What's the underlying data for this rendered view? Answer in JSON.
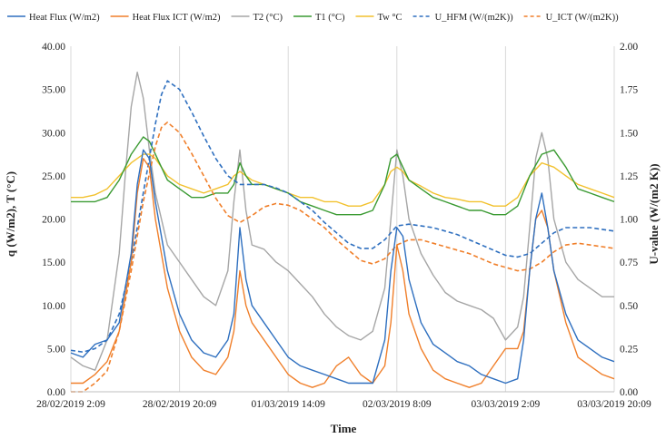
{
  "chart_data": {
    "type": "line",
    "title": "",
    "xlabel": "Time",
    "ylabel": "q (W/m2), T (°C)",
    "y2label": "U-value (W/(m2 K))",
    "xlim": [
      0,
      90
    ],
    "x_tick_values": [
      0,
      18,
      36,
      54,
      72,
      90
    ],
    "x_tick_labels": [
      "28/02/2019 2:09",
      "28/02/2019 20:09",
      "01/03/2019 14:09",
      "02/03/2019 8:09",
      "03/03/2019 2:09",
      "03/03/2019 20:09"
    ],
    "ylim": [
      0,
      40
    ],
    "y_ticks": [
      "0.00",
      "5.00",
      "10.00",
      "15.00",
      "20.00",
      "25.00",
      "30.00",
      "35.00",
      "40.00"
    ],
    "y2lim": [
      0,
      2
    ],
    "y2_ticks": [
      "0.00",
      "0.25",
      "0.50",
      "0.75",
      "1.00",
      "1.25",
      "1.50",
      "1.75",
      "2.00"
    ],
    "grid": "vertical",
    "legend_position": "top",
    "series": [
      {
        "name": "Heat Flux (W/m2)",
        "color": "#2e6fbf",
        "dash": "solid",
        "axis": "left",
        "x": [
          0,
          2,
          4,
          6,
          8,
          10,
          11,
          12,
          13,
          14,
          16,
          18,
          20,
          22,
          24,
          26,
          27,
          28,
          29,
          30,
          32,
          34,
          36,
          38,
          40,
          42,
          44,
          46,
          48,
          50,
          52,
          53,
          54,
          55,
          56,
          58,
          60,
          62,
          64,
          66,
          68,
          70,
          72,
          74,
          75,
          76,
          77,
          78,
          79,
          80,
          82,
          84,
          86,
          88,
          90
        ],
        "y": [
          4.5,
          4.0,
          5.5,
          6.0,
          8.0,
          16.0,
          24.0,
          28.0,
          27.0,
          22.0,
          14.0,
          9.0,
          6.0,
          4.5,
          4.0,
          6.0,
          9.0,
          19.0,
          13.0,
          10.0,
          8.0,
          6.0,
          4.0,
          3.0,
          2.5,
          2.0,
          1.5,
          1.0,
          1.0,
          1.0,
          6.0,
          14.0,
          19.0,
          18.0,
          13.0,
          8.0,
          5.5,
          4.5,
          3.5,
          3.0,
          2.0,
          1.5,
          1.0,
          1.5,
          6.0,
          14.0,
          20.0,
          23.0,
          19.0,
          14.0,
          9.0,
          6.0,
          5.0,
          4.0,
          3.5
        ]
      },
      {
        "name": "Heat Flux ICT (W/m2)",
        "color": "#f07f2a",
        "dash": "solid",
        "axis": "left",
        "x": [
          0,
          2,
          4,
          6,
          8,
          10,
          11,
          12,
          13,
          14,
          16,
          18,
          20,
          22,
          24,
          26,
          27,
          28,
          29,
          30,
          32,
          34,
          36,
          38,
          40,
          42,
          44,
          46,
          48,
          50,
          52,
          53,
          54,
          55,
          56,
          58,
          60,
          62,
          64,
          66,
          68,
          70,
          72,
          74,
          75,
          76,
          77,
          78,
          79,
          80,
          82,
          84,
          86,
          88,
          90
        ],
        "y": [
          1.0,
          1.0,
          2.0,
          3.5,
          7.0,
          15.0,
          23.0,
          27.0,
          26.0,
          20.0,
          12.0,
          7.0,
          4.0,
          2.5,
          2.0,
          4.0,
          7.0,
          14.0,
          10.0,
          8.0,
          6.0,
          4.0,
          2.0,
          1.0,
          0.5,
          1.0,
          3.0,
          4.0,
          2.0,
          1.0,
          3.0,
          8.0,
          17.0,
          14.0,
          9.0,
          5.0,
          2.5,
          1.5,
          1.0,
          0.5,
          1.0,
          3.0,
          5.0,
          5.0,
          7.0,
          14.0,
          20.0,
          21.0,
          19.0,
          14.0,
          8.0,
          4.0,
          3.0,
          2.0,
          1.5
        ]
      },
      {
        "name": "T2 (°C)",
        "color": "#a6a6a6",
        "dash": "solid",
        "axis": "left",
        "x": [
          0,
          2,
          4,
          6,
          8,
          9,
          10,
          11,
          12,
          13,
          14,
          16,
          18,
          20,
          22,
          24,
          26,
          27,
          28,
          29,
          30,
          32,
          34,
          36,
          38,
          40,
          42,
          44,
          46,
          48,
          50,
          52,
          53,
          54,
          55,
          56,
          58,
          60,
          62,
          64,
          66,
          68,
          70,
          72,
          74,
          75,
          76,
          77,
          78,
          79,
          80,
          82,
          84,
          86,
          88,
          90
        ],
        "y": [
          4.0,
          3.0,
          2.5,
          6.0,
          16.0,
          25.0,
          33.0,
          37.0,
          34.0,
          28.0,
          23.0,
          17.0,
          15.0,
          13.0,
          11.0,
          10.0,
          14.0,
          22.0,
          28.0,
          21.0,
          17.0,
          16.5,
          15.0,
          14.0,
          12.5,
          11.0,
          9.0,
          7.5,
          6.5,
          6.0,
          7.0,
          12.0,
          20.0,
          28.0,
          25.0,
          20.0,
          16.0,
          13.5,
          11.5,
          10.5,
          10.0,
          9.5,
          8.5,
          6.0,
          7.5,
          11.0,
          19.0,
          27.0,
          30.0,
          27.0,
          20.0,
          15.0,
          13.0,
          12.0,
          11.0,
          11.0
        ]
      },
      {
        "name": "T1 (°C)",
        "color": "#3a9a32",
        "dash": "solid",
        "axis": "left",
        "x": [
          0,
          2,
          4,
          6,
          8,
          10,
          12,
          13,
          14,
          16,
          18,
          20,
          22,
          24,
          26,
          27,
          28,
          29,
          30,
          32,
          34,
          36,
          38,
          40,
          42,
          44,
          46,
          48,
          50,
          52,
          53,
          54,
          55,
          56,
          58,
          60,
          62,
          64,
          66,
          68,
          70,
          72,
          74,
          76,
          78,
          80,
          82,
          84,
          86,
          88,
          90
        ],
        "y": [
          22.0,
          22.0,
          22.0,
          22.5,
          24.5,
          27.5,
          29.5,
          29.0,
          27.5,
          24.5,
          23.5,
          22.5,
          22.5,
          23.0,
          23.0,
          24.0,
          26.5,
          25.0,
          24.0,
          24.0,
          23.5,
          23.0,
          22.0,
          21.5,
          21.0,
          20.5,
          20.5,
          20.5,
          21.0,
          24.0,
          27.0,
          27.5,
          26.0,
          24.5,
          23.5,
          22.5,
          22.0,
          21.5,
          21.0,
          21.0,
          20.5,
          20.5,
          21.5,
          25.0,
          27.5,
          28.0,
          26.0,
          23.5,
          23.0,
          22.5,
          22.0
        ]
      },
      {
        "name": "Tw °C",
        "color": "#f2c12e",
        "dash": "solid",
        "axis": "left",
        "x": [
          0,
          2,
          4,
          6,
          8,
          10,
          12,
          13,
          14,
          16,
          18,
          20,
          22,
          24,
          26,
          27,
          28,
          30,
          32,
          34,
          36,
          38,
          40,
          42,
          44,
          46,
          48,
          50,
          52,
          53,
          54,
          55,
          56,
          58,
          60,
          62,
          64,
          66,
          68,
          70,
          72,
          74,
          76,
          78,
          80,
          82,
          84,
          86,
          88,
          90
        ],
        "y": [
          22.5,
          22.5,
          22.8,
          23.5,
          25.0,
          26.5,
          27.5,
          27.5,
          27.0,
          25.0,
          24.0,
          23.5,
          23.0,
          23.5,
          24.0,
          25.0,
          25.5,
          24.5,
          24.0,
          23.5,
          23.0,
          22.5,
          22.5,
          22.0,
          22.0,
          21.5,
          21.5,
          22.0,
          24.0,
          25.5,
          26.0,
          25.5,
          24.5,
          23.8,
          23.0,
          22.5,
          22.3,
          22.0,
          22.0,
          21.5,
          21.5,
          22.5,
          25.0,
          26.5,
          26.0,
          25.0,
          24.0,
          23.5,
          23.0,
          22.5
        ]
      },
      {
        "name": "U_HFM (W/(m2K))",
        "color": "#2e6fbf",
        "dash": "dashed",
        "axis": "right",
        "x": [
          0,
          2,
          4,
          6,
          8,
          10,
          12,
          14,
          15,
          16,
          18,
          20,
          22,
          24,
          26,
          28,
          30,
          32,
          34,
          36,
          38,
          40,
          42,
          44,
          46,
          48,
          50,
          52,
          54,
          56,
          58,
          60,
          62,
          64,
          66,
          68,
          70,
          72,
          74,
          76,
          78,
          80,
          82,
          84,
          86,
          88,
          90
        ],
        "y": [
          0.24,
          0.23,
          0.25,
          0.3,
          0.45,
          0.75,
          1.15,
          1.55,
          1.72,
          1.8,
          1.75,
          1.62,
          1.48,
          1.35,
          1.25,
          1.2,
          1.2,
          1.2,
          1.18,
          1.15,
          1.1,
          1.05,
          0.98,
          0.92,
          0.86,
          0.83,
          0.83,
          0.88,
          0.96,
          0.97,
          0.96,
          0.95,
          0.93,
          0.91,
          0.88,
          0.85,
          0.82,
          0.79,
          0.78,
          0.8,
          0.86,
          0.92,
          0.95,
          0.95,
          0.95,
          0.94,
          0.93
        ]
      },
      {
        "name": "U_ICT (W/(m2K))",
        "color": "#f07f2a",
        "dash": "dashed",
        "axis": "right",
        "x": [
          0,
          2,
          4,
          6,
          8,
          10,
          12,
          14,
          15,
          16,
          18,
          20,
          22,
          24,
          26,
          28,
          30,
          32,
          34,
          36,
          38,
          40,
          42,
          44,
          46,
          48,
          50,
          52,
          54,
          56,
          58,
          60,
          62,
          64,
          66,
          68,
          70,
          72,
          74,
          76,
          78,
          80,
          82,
          84,
          86,
          88,
          90
        ],
        "y": [
          0.0,
          0.0,
          0.05,
          0.12,
          0.35,
          0.7,
          1.1,
          1.42,
          1.53,
          1.56,
          1.5,
          1.38,
          1.25,
          1.12,
          1.02,
          0.98,
          1.02,
          1.07,
          1.09,
          1.08,
          1.05,
          1.0,
          0.95,
          0.88,
          0.82,
          0.76,
          0.74,
          0.77,
          0.85,
          0.88,
          0.88,
          0.86,
          0.84,
          0.82,
          0.8,
          0.77,
          0.74,
          0.72,
          0.7,
          0.71,
          0.75,
          0.81,
          0.85,
          0.86,
          0.85,
          0.84,
          0.83
        ]
      }
    ]
  }
}
